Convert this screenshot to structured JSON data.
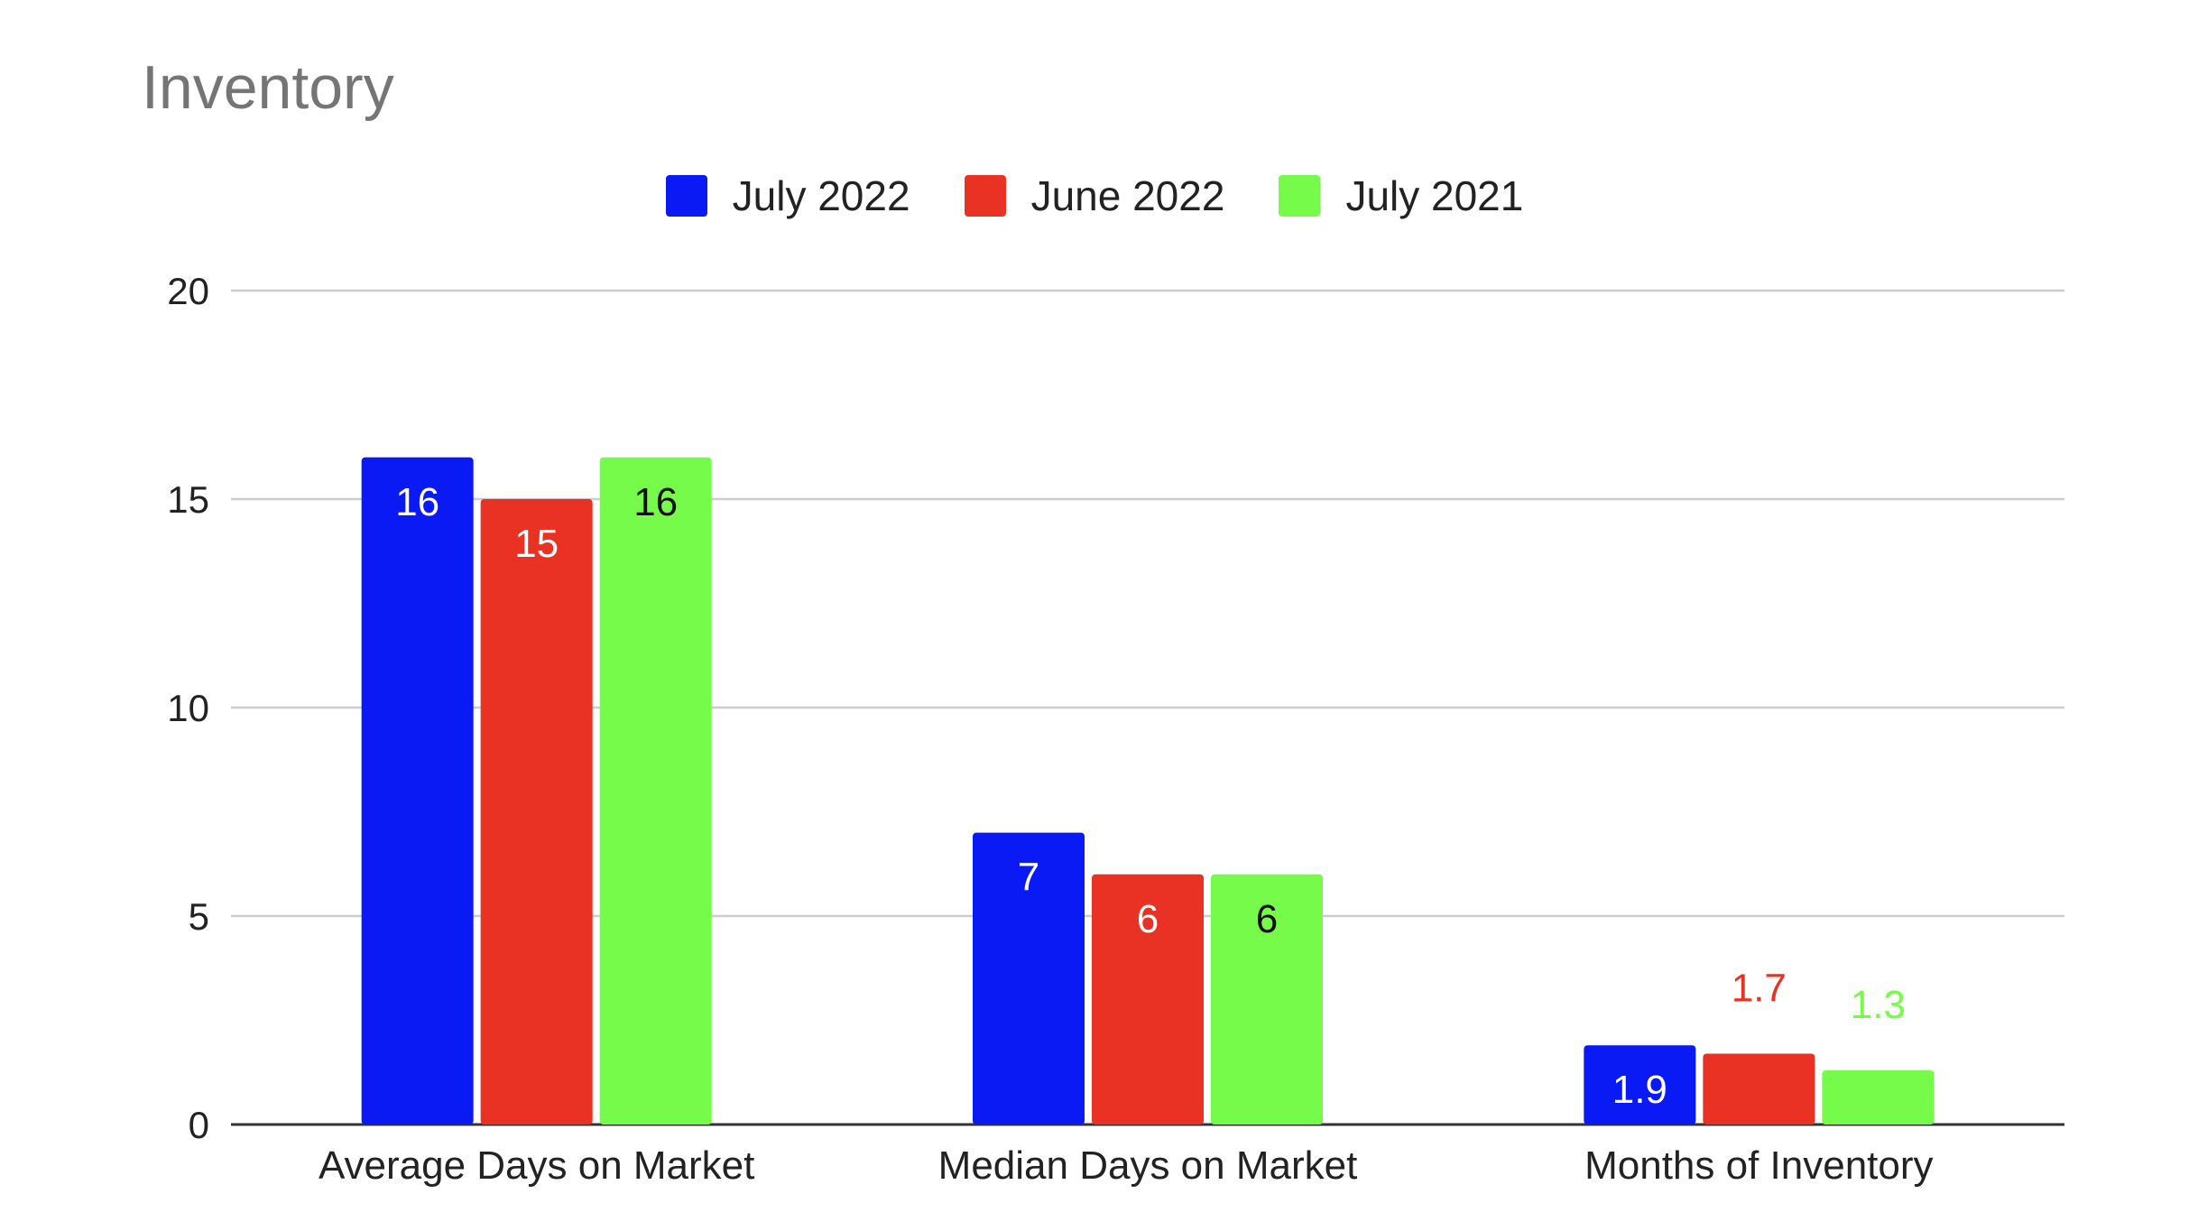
{
  "chart_data": {
    "type": "bar",
    "title": "Inventory",
    "categories": [
      "Average Days on Market",
      "Median Days on Market",
      "Months of Inventory"
    ],
    "series": [
      {
        "name": "July 2022",
        "color": "#0a1af5",
        "values": [
          16,
          7,
          1.9
        ],
        "labels": [
          "16",
          "7",
          "1.9"
        ],
        "label_color": "#ffffff"
      },
      {
        "name": "June 2022",
        "color": "#e93223",
        "values": [
          15,
          6,
          1.7
        ],
        "labels": [
          "15",
          "6",
          "1.7"
        ],
        "label_color": "#ffffff"
      },
      {
        "name": "July 2021",
        "color": "#77fb4b",
        "values": [
          16,
          6,
          1.3
        ],
        "labels": [
          "16",
          "6",
          "1.3"
        ],
        "label_color": "#111111",
        "outside_label_color": "#77fb4b"
      }
    ],
    "yticks": [
      "0",
      "5",
      "10",
      "15",
      "20"
    ],
    "ylim": [
      0,
      20
    ],
    "grid": true,
    "legend_position": "top-center",
    "data_labels": true
  }
}
